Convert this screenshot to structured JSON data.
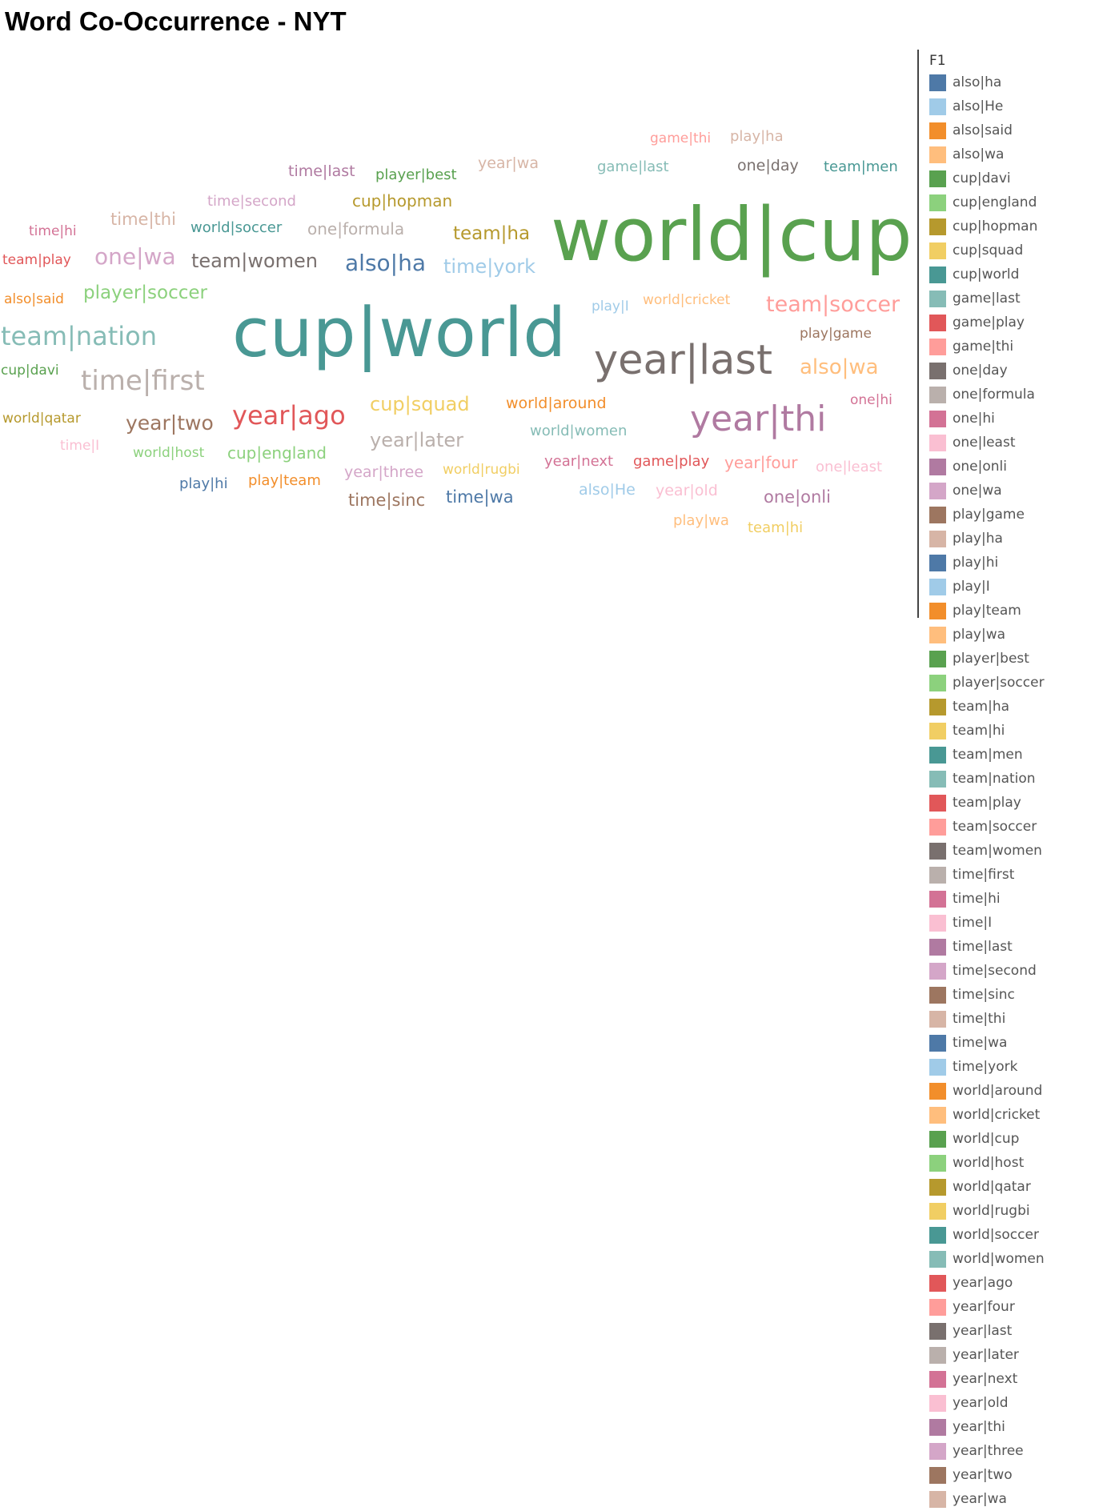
{
  "chart_data": {
    "type": "wordcloud",
    "title": "Word Co-Occurrence - NYT",
    "legend_title": "F1",
    "legend_placement": "right",
    "words": [
      {
        "text": "world|cup",
        "weight": 100,
        "color": "#59a14f"
      },
      {
        "text": "cup|world",
        "weight": 92,
        "color": "#499894"
      },
      {
        "text": "year|last",
        "weight": 55,
        "color": "#79706e"
      },
      {
        "text": "year|thi",
        "weight": 48,
        "color": "#b07aa1"
      },
      {
        "text": "time|first",
        "weight": 37,
        "color": "#bab0ac"
      },
      {
        "text": "team|nation",
        "weight": 35,
        "color": "#86bcb6"
      },
      {
        "text": "year|ago",
        "weight": 35,
        "color": "#e15759"
      },
      {
        "text": "one|wa",
        "weight": 30,
        "color": "#d4a6c8"
      },
      {
        "text": "also|ha",
        "weight": 30,
        "color": "#4e79a7"
      },
      {
        "text": "team|soccer",
        "weight": 29,
        "color": "#ff9d9a"
      },
      {
        "text": "also|wa",
        "weight": 28,
        "color": "#ffbe7d"
      },
      {
        "text": "year|two",
        "weight": 27,
        "color": "#9d7660"
      },
      {
        "text": "time|york",
        "weight": 26,
        "color": "#a0cbe8"
      },
      {
        "text": "team|women",
        "weight": 26,
        "color": "#79706e"
      },
      {
        "text": "cup|squad",
        "weight": 26,
        "color": "#f1ce63"
      },
      {
        "text": "year|later",
        "weight": 26,
        "color": "#bab0ac"
      },
      {
        "text": "team|ha",
        "weight": 25,
        "color": "#b6992d"
      },
      {
        "text": "player|soccer",
        "weight": 25,
        "color": "#8cd17d"
      },
      {
        "text": "time|sinc",
        "weight": 23,
        "color": "#9d7660"
      },
      {
        "text": "time|wa",
        "weight": 23,
        "color": "#4e79a7"
      },
      {
        "text": "one|onli",
        "weight": 23,
        "color": "#b07aa1"
      },
      {
        "text": "time|thi",
        "weight": 23,
        "color": "#d7b5a6"
      },
      {
        "text": "year|four",
        "weight": 22,
        "color": "#ff9d9a"
      },
      {
        "text": "one|formula",
        "weight": 22,
        "color": "#bab0ac"
      },
      {
        "text": "cup|hopman",
        "weight": 22,
        "color": "#b6992d"
      },
      {
        "text": "cup|england",
        "weight": 22,
        "color": "#8cd17d"
      },
      {
        "text": "time|last",
        "weight": 21,
        "color": "#b07aa1"
      },
      {
        "text": "also|He",
        "weight": 21,
        "color": "#a0cbe8"
      },
      {
        "text": "year|old",
        "weight": 21,
        "color": "#fabfd2"
      },
      {
        "text": "year|three",
        "weight": 21,
        "color": "#d4a6c8"
      },
      {
        "text": "world|around",
        "weight": 21,
        "color": "#f28e2b"
      },
      {
        "text": "year|wa",
        "weight": 21,
        "color": "#d7b5a6"
      },
      {
        "text": "one|day",
        "weight": 21,
        "color": "#79706e"
      },
      {
        "text": "world|women",
        "weight": 20,
        "color": "#86bcb6"
      },
      {
        "text": "world|soccer",
        "weight": 20,
        "color": "#499894"
      },
      {
        "text": "game|last",
        "weight": 20,
        "color": "#86bcb6"
      },
      {
        "text": "team|men",
        "weight": 20,
        "color": "#499894"
      },
      {
        "text": "play|ha",
        "weight": 20,
        "color": "#d7b5a6"
      },
      {
        "text": "player|best",
        "weight": 20,
        "color": "#59a14f"
      },
      {
        "text": "time|second",
        "weight": 20,
        "color": "#d4a6c8"
      },
      {
        "text": "play|hi",
        "weight": 20,
        "color": "#4e79a7"
      },
      {
        "text": "play|team",
        "weight": 20,
        "color": "#f28e2b"
      },
      {
        "text": "play|wa",
        "weight": 20,
        "color": "#ffbe7d"
      },
      {
        "text": "team|hi",
        "weight": 20,
        "color": "#f1ce63"
      },
      {
        "text": "year|next",
        "weight": 20,
        "color": "#d37295"
      },
      {
        "text": "game|play",
        "weight": 20,
        "color": "#e15759"
      },
      {
        "text": "one|least",
        "weight": 20,
        "color": "#fabfd2"
      },
      {
        "text": "world|cricket",
        "weight": 19,
        "color": "#ffbe7d"
      },
      {
        "text": "play|game",
        "weight": 19,
        "color": "#9d7660"
      },
      {
        "text": "one|hi",
        "weight": 19,
        "color": "#d37295"
      },
      {
        "text": "time|hi",
        "weight": 19,
        "color": "#d37295"
      },
      {
        "text": "team|play",
        "weight": 19,
        "color": "#e15759"
      },
      {
        "text": "also|said",
        "weight": 19,
        "color": "#f28e2b"
      },
      {
        "text": "cup|davi",
        "weight": 18,
        "color": "#59a14f"
      },
      {
        "text": "world|qatar",
        "weight": 18,
        "color": "#b6992d"
      },
      {
        "text": "time|I",
        "weight": 19,
        "color": "#fabfd2"
      },
      {
        "text": "world|host",
        "weight": 18,
        "color": "#8cd17d"
      },
      {
        "text": "world|rugbi",
        "weight": 19,
        "color": "#f1ce63"
      },
      {
        "text": "play|I",
        "weight": 18,
        "color": "#a0cbe8"
      },
      {
        "text": "game|thi",
        "weight": 19,
        "color": "#ff9d9a"
      }
    ],
    "legend": [
      {
        "label": "also|ha",
        "color": "#4e79a7"
      },
      {
        "label": "also|He",
        "color": "#a0cbe8"
      },
      {
        "label": "also|said",
        "color": "#f28e2b"
      },
      {
        "label": "also|wa",
        "color": "#ffbe7d"
      },
      {
        "label": "cup|davi",
        "color": "#59a14f"
      },
      {
        "label": "cup|england",
        "color": "#8cd17d"
      },
      {
        "label": "cup|hopman",
        "color": "#b6992d"
      },
      {
        "label": "cup|squad",
        "color": "#f1ce63"
      },
      {
        "label": "cup|world",
        "color": "#499894"
      },
      {
        "label": "game|last",
        "color": "#86bcb6"
      },
      {
        "label": "game|play",
        "color": "#e15759"
      },
      {
        "label": "game|thi",
        "color": "#ff9d9a"
      },
      {
        "label": "one|day",
        "color": "#79706e"
      },
      {
        "label": "one|formula",
        "color": "#bab0ac"
      },
      {
        "label": "one|hi",
        "color": "#d37295"
      },
      {
        "label": "one|least",
        "color": "#fabfd2"
      },
      {
        "label": "one|onli",
        "color": "#b07aa1"
      },
      {
        "label": "one|wa",
        "color": "#d4a6c8"
      },
      {
        "label": "play|game",
        "color": "#9d7660"
      },
      {
        "label": "play|ha",
        "color": "#d7b5a6"
      },
      {
        "label": "play|hi",
        "color": "#4e79a7"
      },
      {
        "label": "play|I",
        "color": "#a0cbe8"
      },
      {
        "label": "play|team",
        "color": "#f28e2b"
      },
      {
        "label": "play|wa",
        "color": "#ffbe7d"
      },
      {
        "label": "player|best",
        "color": "#59a14f"
      },
      {
        "label": "player|soccer",
        "color": "#8cd17d"
      },
      {
        "label": "team|ha",
        "color": "#b6992d"
      },
      {
        "label": "team|hi",
        "color": "#f1ce63"
      },
      {
        "label": "team|men",
        "color": "#499894"
      },
      {
        "label": "team|nation",
        "color": "#86bcb6"
      },
      {
        "label": "team|play",
        "color": "#e15759"
      },
      {
        "label": "team|soccer",
        "color": "#ff9d9a"
      },
      {
        "label": "team|women",
        "color": "#79706e"
      },
      {
        "label": "time|first",
        "color": "#bab0ac"
      },
      {
        "label": "time|hi",
        "color": "#d37295"
      },
      {
        "label": "time|I",
        "color": "#fabfd2"
      },
      {
        "label": "time|last",
        "color": "#b07aa1"
      },
      {
        "label": "time|second",
        "color": "#d4a6c8"
      },
      {
        "label": "time|sinc",
        "color": "#9d7660"
      },
      {
        "label": "time|thi",
        "color": "#d7b5a6"
      },
      {
        "label": "time|wa",
        "color": "#4e79a7"
      },
      {
        "label": "time|york",
        "color": "#a0cbe8"
      },
      {
        "label": "world|around",
        "color": "#f28e2b"
      },
      {
        "label": "world|cricket",
        "color": "#ffbe7d"
      },
      {
        "label": "world|cup",
        "color": "#59a14f"
      },
      {
        "label": "world|host",
        "color": "#8cd17d"
      },
      {
        "label": "world|qatar",
        "color": "#b6992d"
      },
      {
        "label": "world|rugbi",
        "color": "#f1ce63"
      },
      {
        "label": "world|soccer",
        "color": "#499894"
      },
      {
        "label": "world|women",
        "color": "#86bcb6"
      },
      {
        "label": "year|ago",
        "color": "#e15759"
      },
      {
        "label": "year|four",
        "color": "#ff9d9a"
      },
      {
        "label": "year|last",
        "color": "#79706e"
      },
      {
        "label": "year|later",
        "color": "#bab0ac"
      },
      {
        "label": "year|next",
        "color": "#d37295"
      },
      {
        "label": "year|old",
        "color": "#fabfd2"
      },
      {
        "label": "year|thi",
        "color": "#b07aa1"
      },
      {
        "label": "year|three",
        "color": "#d4a6c8"
      },
      {
        "label": "year|two",
        "color": "#9d7660"
      },
      {
        "label": "year|wa",
        "color": "#d7b5a6"
      }
    ]
  }
}
